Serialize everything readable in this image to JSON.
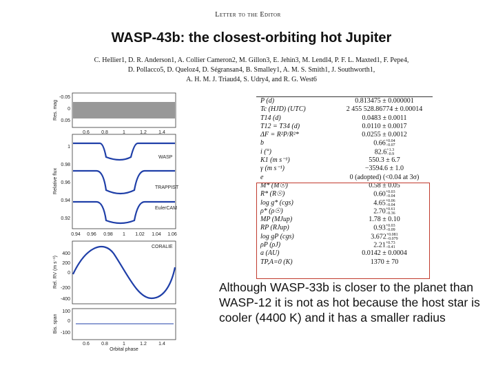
{
  "header": "Letter to the Editor",
  "title": "WASP-43b: the closest-orbiting hot Jupiter",
  "authors": [
    "C. Hellier1, D. R. Anderson1, A. Collier Cameron2, M. Gillon3, E. Jehin3, M. Lendl4, P. F. L. Maxted1, F. Pepe4,",
    "D. Pollacco5, D. Queloz4, D. Ségransan4, B. Smalley1, A. M. S. Smith1, J. Southworth1,",
    "A. H. M. J. Triaud4, S. Udry4, and R. G. West6"
  ],
  "figure": {
    "residual_panel": {
      "ylabel": "Res. mag",
      "yticks": [
        "-0.05",
        "0",
        "0.05"
      ],
      "xticks": [
        "0.6",
        "0.8",
        "1",
        "1.2",
        "1.4"
      ]
    },
    "flux_panel": {
      "ylabel": "Relative flux",
      "yticks": [
        "1",
        "0.98",
        "0.96",
        "0.94",
        "0.92"
      ],
      "labels": [
        "WASP",
        "TRAPPIST",
        "EulerCAM"
      ],
      "xticks": [
        "0.94",
        "0.96",
        "0.98",
        "1",
        "1.02",
        "1.04",
        "1.06"
      ]
    },
    "rv_panel": {
      "ylabel": "Rel. RV (m s⁻¹)",
      "label": "CORALIE",
      "yticks": [
        "400",
        "200",
        "0",
        "-200",
        "-400"
      ]
    },
    "bis_panel": {
      "ylabel": "Bis. span",
      "yticks": [
        "100",
        "0",
        "-100"
      ],
      "xticks": [
        "0.6",
        "0.8",
        "1",
        "1.2",
        "1.4"
      ],
      "xlabel": "Orbital phase"
    }
  },
  "table": [
    {
      "label": "P (d)",
      "value": "0.813475 ± 0.000001"
    },
    {
      "label": "Tc (HJD) (UTC)",
      "value": "2 455 528.86774 ± 0.00014"
    },
    {
      "label": "T14 (d)",
      "value": "0.0483 ± 0.0011"
    },
    {
      "label": "T12 = T34 (d)",
      "value": "0.0110 ± 0.0017"
    },
    {
      "label": "ΔF = R²P/R²*",
      "value": "0.0255 ± 0.0012"
    },
    {
      "label": "b",
      "value": "0.66",
      "up": "+0.04",
      "down": "−0.07"
    },
    {
      "label": "i (°)",
      "value": "82.6",
      "up": "+1.3",
      "down": "−0.9"
    },
    {
      "label": "K1 (m s⁻¹)",
      "value": "550.3 ± 6.7"
    },
    {
      "label": "γ (m s⁻¹)",
      "value": "−3594.6 ± 1.0"
    },
    {
      "label": "e",
      "value": "0 (adopted) (<0.04 at 3σ)"
    },
    {
      "label": "M* (M☉)",
      "value": "0.58 ± 0.05"
    },
    {
      "label": "R* (R☉)",
      "value": "0.60",
      "up": "+0.03",
      "down": "−0.04"
    },
    {
      "label": "log g* (cgs)",
      "value": "4.65",
      "up": "+0.06",
      "down": "−0.04"
    },
    {
      "label": "ρ* (ρ☉)",
      "value": "2.70",
      "up": "+0.61",
      "down": "−0.36"
    },
    {
      "label": "MP (MJup)",
      "value": "1.78 ± 0.10"
    },
    {
      "label": "RP (RJup)",
      "value": "0.93",
      "up": "+0.03",
      "down": "−0.09"
    },
    {
      "label": "log gP (cgs)",
      "value": "3.672",
      "up": "+0.081",
      "down": "−0.079"
    },
    {
      "label": "ρP (ρJ)",
      "value": "2.21",
      "up": "+0.73",
      "down": "−0.41"
    },
    {
      "label": "a (AU)",
      "value": "0.0142 ± 0.0004"
    },
    {
      "label": "TP,A=0 (K)",
      "value": "1370 ± 70"
    }
  ],
  "note": "Although WASP-33b is closer to the planet than WASP-12 it is not as hot because the host star is cooler (4400 K) and it has a smaller radius"
}
